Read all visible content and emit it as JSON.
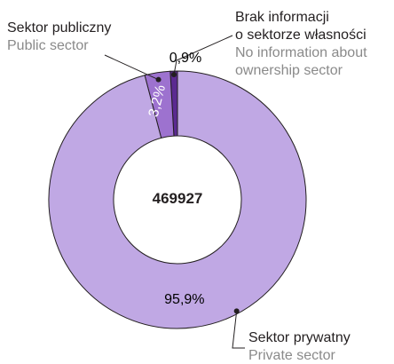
{
  "chart_data": {
    "type": "pie",
    "variant": "donut",
    "total": "469927",
    "slices": [
      {
        "key": "noinfo",
        "value": 0.9,
        "label": "0,9%",
        "name_pl": [
          "Brak informacji",
          "o sektorze własności"
        ],
        "name_en": [
          "No information about",
          "ownership sector"
        ],
        "color": "#5b2a91"
      },
      {
        "key": "public",
        "value": 3.2,
        "label": "3,2%",
        "name_pl": [
          "Sektor publiczny"
        ],
        "name_en": [
          "Public sector"
        ],
        "color": "#9d72cf"
      },
      {
        "key": "private",
        "value": 95.9,
        "label": "95,9%",
        "name_pl": [
          "Sektor prywatny"
        ],
        "name_en": [
          "Private sector"
        ],
        "color": "#c0a8e4"
      }
    ]
  }
}
